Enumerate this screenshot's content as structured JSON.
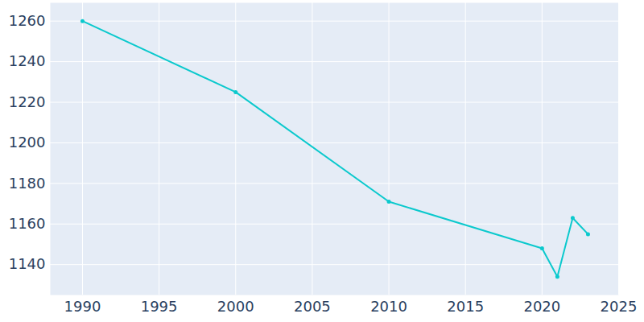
{
  "chart_data": {
    "type": "line",
    "x": [
      1990,
      2000,
      2010,
      2020,
      2021,
      2022,
      2023
    ],
    "values": [
      1260,
      1225,
      1171,
      1148,
      1134,
      1163,
      1155
    ],
    "color": "#0bc9cd",
    "marker": "circle",
    "xlim": [
      1987.9,
      2025
    ],
    "ylim": [
      1125,
      1269
    ],
    "xticks": [
      1990,
      1995,
      2000,
      2005,
      2010,
      2015,
      2020,
      2025
    ],
    "yticks": [
      1140,
      1160,
      1180,
      1200,
      1220,
      1240,
      1260
    ],
    "grid": true
  }
}
